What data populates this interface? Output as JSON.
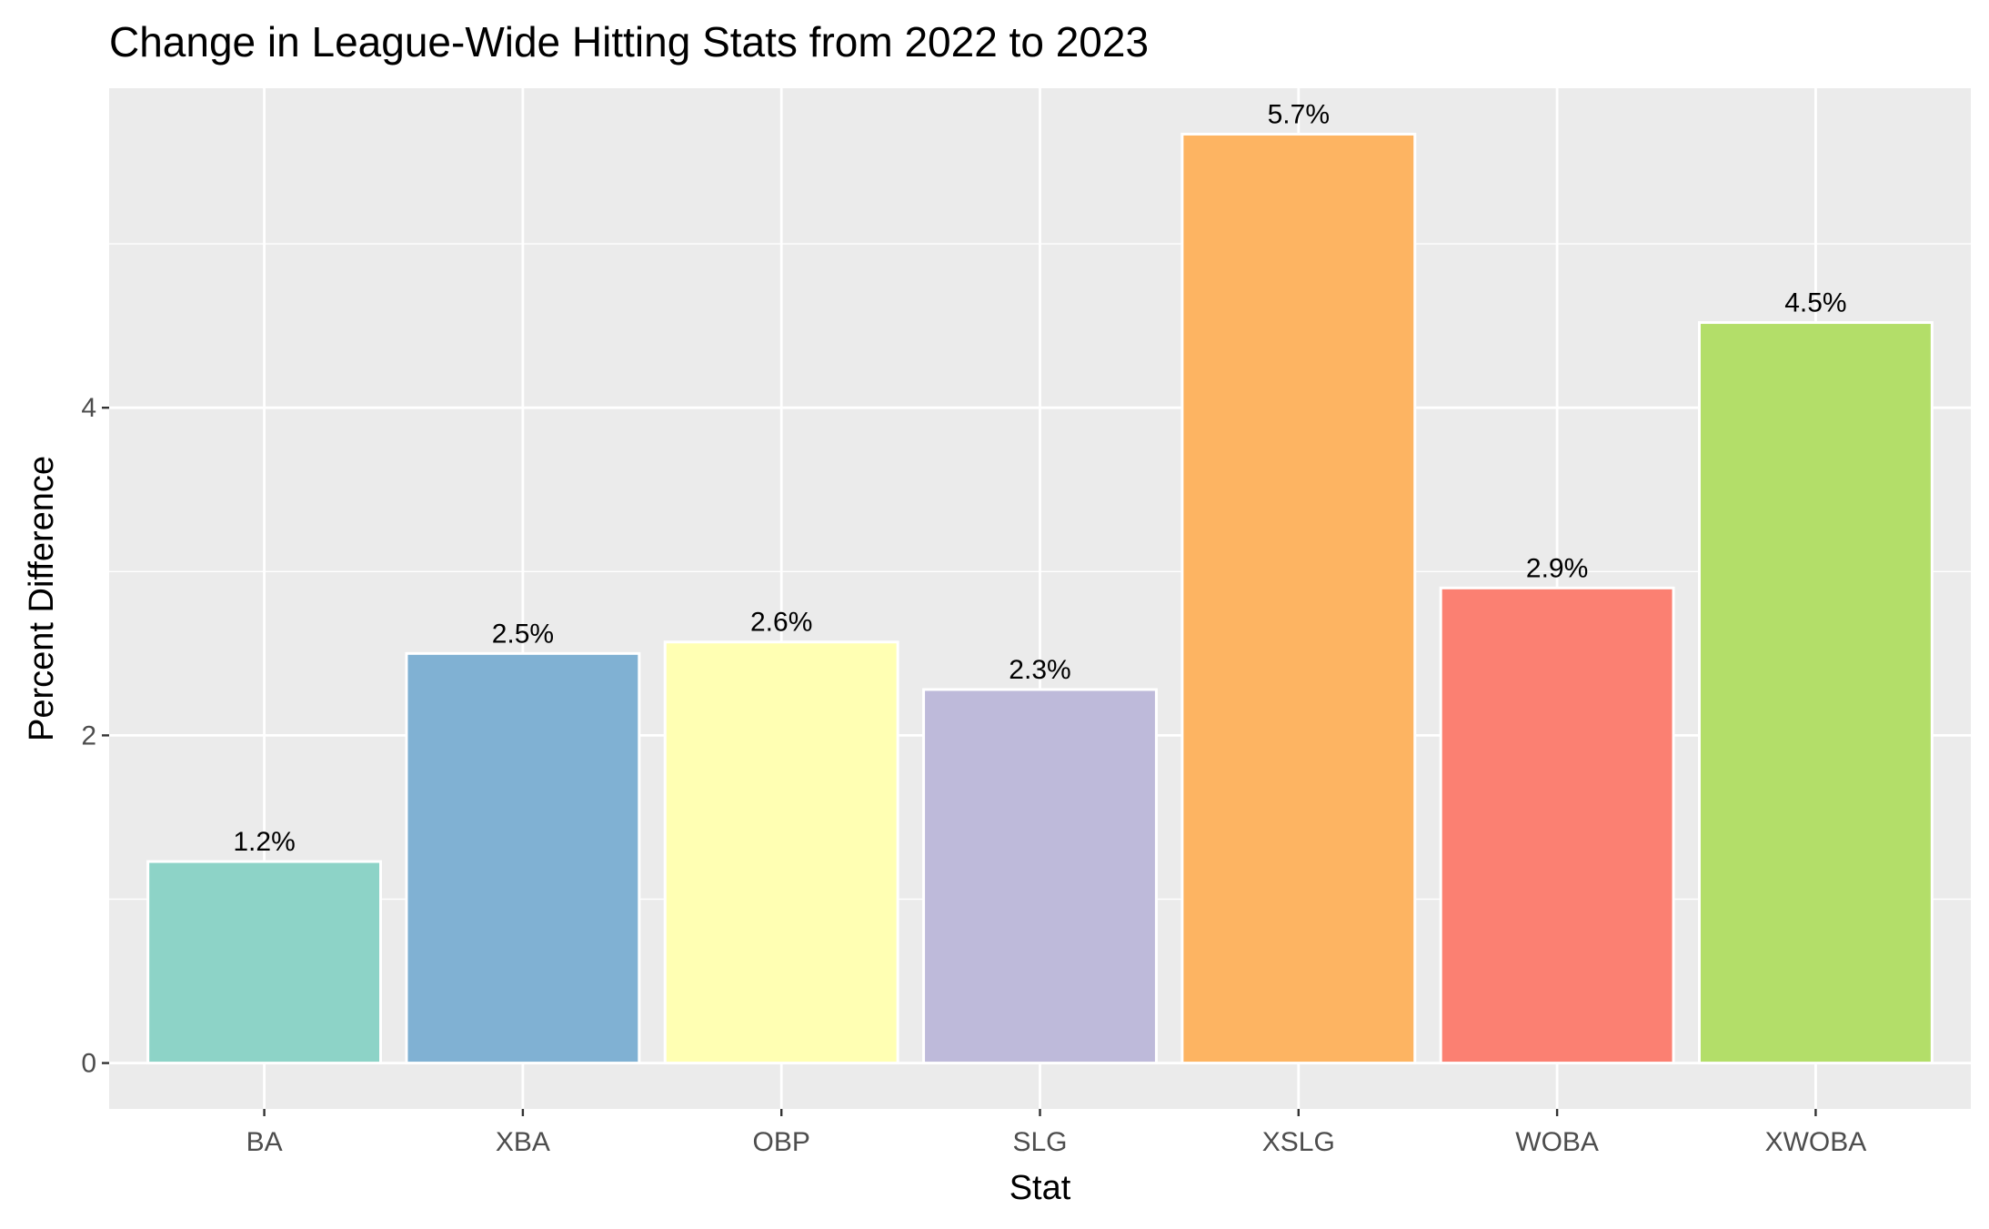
{
  "chart_data": {
    "type": "bar",
    "title": "Change in League-Wide Hitting Stats from 2022 to 2023",
    "xlabel": "Stat",
    "ylabel": "Percent Difference",
    "categories": [
      "BA",
      "XBA",
      "OBP",
      "SLG",
      "XSLG",
      "WOBA",
      "XWOBA"
    ],
    "values": [
      1.23,
      2.5,
      2.57,
      2.28,
      5.67,
      2.9,
      4.52
    ],
    "data_labels": [
      "1.2%",
      "2.5%",
      "2.6%",
      "2.3%",
      "5.7%",
      "2.9%",
      "4.5%"
    ],
    "colors": [
      "#8DD3C7",
      "#80B1D3",
      "#FFFFB3",
      "#BEBADA",
      "#FDB462",
      "#FB8072",
      "#B3DE69"
    ],
    "y_ticks": [
      0,
      2,
      4
    ],
    "y_tick_labels": [
      "0",
      "2",
      "4"
    ],
    "ylim": [
      -0.28,
      5.95
    ],
    "grid": true,
    "legend": "none",
    "panel_background": "#EBEBEB"
  }
}
